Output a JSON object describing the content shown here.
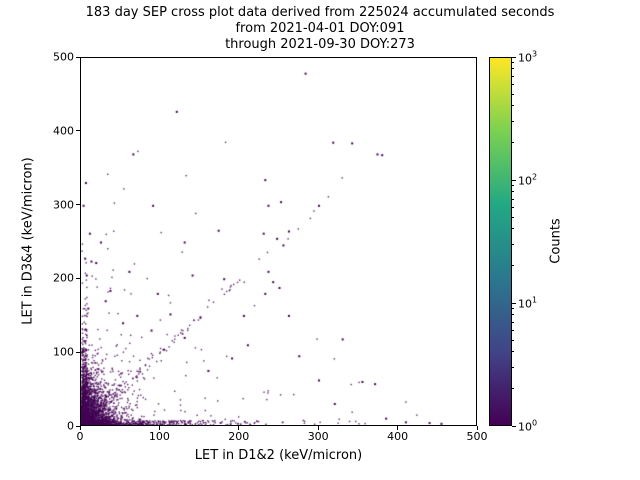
{
  "chart_data": {
    "type": "scatter",
    "title": "183 day SEP cross plot data derived from 225024 accumulated seconds",
    "subtitle_from": "from 2021-04-01 DOY:091",
    "subtitle_through": "through 2021-09-30 DOY:273",
    "xlabel": "LET in D1&2 (keV/micron)",
    "ylabel": "LET in D3&4 (keV/micron)",
    "xlim": [
      0,
      500
    ],
    "ylim": [
      0,
      500
    ],
    "xticks": [
      0,
      100,
      200,
      300,
      400,
      500
    ],
    "yticks": [
      0,
      100,
      200,
      300,
      400,
      500
    ],
    "grid": false,
    "background": "#ffffff",
    "point_color": "#440154",
    "point_alt_colors": [
      "#3b528b",
      "#472d7b"
    ],
    "colorbar": {
      "label": "Counts",
      "scale": "log",
      "tick_exponents": [
        0,
        1,
        2,
        3
      ],
      "cmap": "viridis",
      "gradient": [
        "#440154",
        "#414487",
        "#2a788e",
        "#22a884",
        "#7ad151",
        "#fde725"
      ]
    },
    "distribution": {
      "seed": 20210401,
      "clusters": [
        {
          "kind": "exp2d",
          "x_mean": 14,
          "y_mean": 22,
          "x_max": 80,
          "y_max": 120,
          "count": 2600
        },
        {
          "kind": "band_x",
          "x_mean": 70,
          "x_max": 400,
          "y_max": 7,
          "count": 550
        },
        {
          "kind": "band_y",
          "y_mean": 55,
          "y_max": 280,
          "x_max": 7,
          "count": 320
        },
        {
          "kind": "diagonal",
          "t_mean": 80,
          "t_max": 340,
          "spread": 10,
          "count": 170
        },
        {
          "kind": "field",
          "x_mean": 90,
          "y_mean": 90,
          "x_max": 430,
          "y_max": 440,
          "count": 160
        }
      ]
    },
    "outlier_points": [
      [
        283,
        480
      ],
      [
        120,
        428
      ],
      [
        65,
        370
      ],
      [
        318,
        386
      ],
      [
        342,
        385
      ],
      [
        374,
        370
      ],
      [
        380,
        369
      ],
      [
        232,
        335
      ],
      [
        5,
        331
      ],
      [
        252,
        305
      ],
      [
        236,
        300
      ],
      [
        300,
        300
      ],
      [
        173,
        266
      ],
      [
        262,
        265
      ],
      [
        230,
        262
      ],
      [
        247,
        255
      ],
      [
        255,
        246
      ],
      [
        10,
        262
      ],
      [
        4,
        228
      ],
      [
        12,
        224
      ],
      [
        18,
        222
      ],
      [
        6,
        205
      ],
      [
        60,
        210
      ],
      [
        140,
        205
      ],
      [
        180,
        200
      ],
      [
        236,
        210
      ],
      [
        242,
        196
      ],
      [
        250,
        188
      ],
      [
        232,
        180
      ],
      [
        96,
        180
      ],
      [
        36,
        184
      ],
      [
        30,
        170
      ],
      [
        8,
        160
      ],
      [
        112,
        152
      ],
      [
        150,
        148
      ],
      [
        205,
        150
      ],
      [
        262,
        150
      ],
      [
        330,
        118
      ],
      [
        355,
        60
      ],
      [
        371,
        57
      ],
      [
        385,
        10
      ],
      [
        410,
        5
      ],
      [
        440,
        4
      ],
      [
        455,
        3
      ],
      [
        300,
        62
      ],
      [
        320,
        30
      ],
      [
        275,
        95
      ],
      [
        210,
        110
      ],
      [
        190,
        92
      ],
      [
        160,
        75
      ],
      [
        130,
        120
      ],
      [
        104,
        104
      ],
      [
        88,
        130
      ],
      [
        70,
        150
      ],
      [
        52,
        140
      ],
      [
        24,
        250
      ],
      [
        2,
        300
      ],
      [
        90,
        300
      ],
      [
        130,
        250
      ]
    ]
  }
}
